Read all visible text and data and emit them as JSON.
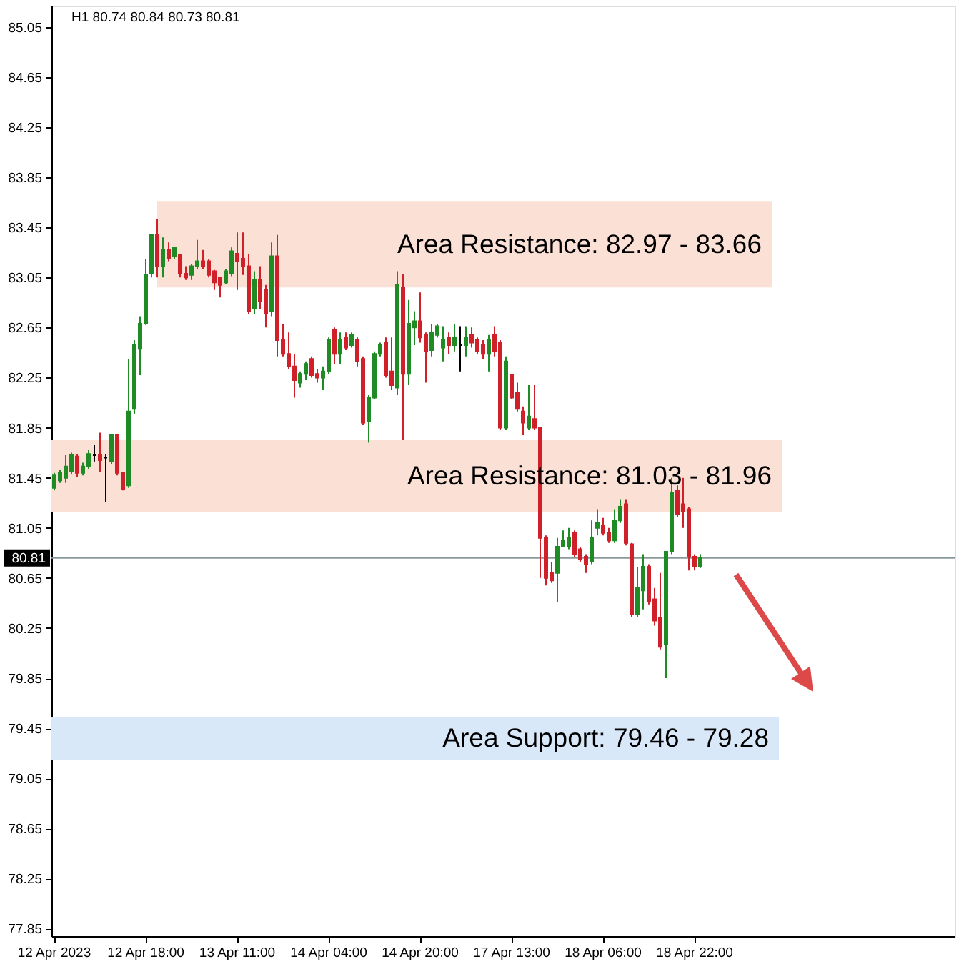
{
  "chart_data": {
    "type": "candlestick",
    "title": "H1 80.74 80.84 80.73 80.81",
    "categories": [
      "12 Apr 2023",
      null,
      null,
      null,
      null,
      null,
      null,
      null,
      null,
      null,
      null,
      null,
      null,
      null,
      null,
      null,
      "12 Apr 18:00",
      null,
      null,
      null,
      null,
      null,
      null,
      null,
      null,
      null,
      null,
      null,
      null,
      null,
      null,
      null,
      "13 Apr 11:00",
      null,
      null,
      null,
      null,
      null,
      null,
      null,
      null,
      null,
      null,
      null,
      null,
      null,
      null,
      null,
      "14 Apr 04:00",
      null,
      null,
      null,
      null,
      null,
      null,
      null,
      null,
      null,
      null,
      null,
      null,
      null,
      null,
      null,
      "14 Apr 20:00",
      null,
      null,
      null,
      null,
      null,
      null,
      null,
      null,
      null,
      null,
      null,
      null,
      null,
      null,
      null,
      "17 Apr 13:00",
      null,
      null,
      null,
      null,
      null,
      null,
      null,
      null,
      null,
      null,
      null,
      null,
      null,
      null,
      null,
      "18 Apr 06:00",
      null,
      null,
      null,
      null,
      null,
      null,
      null,
      null,
      null,
      null,
      null,
      null,
      null,
      null,
      null,
      "18 Apr 22:00",
      null,
      null,
      null,
      null,
      null,
      null,
      null,
      null,
      null,
      null,
      null,
      null,
      null,
      null,
      null,
      null,
      null,
      null,
      null,
      null,
      null,
      null,
      null,
      null,
      null,
      null,
      null,
      null,
      null,
      null,
      null,
      null,
      null,
      null,
      null,
      null,
      null,
      null,
      null,
      null,
      null,
      null,
      null,
      null,
      null
    ],
    "ohlc": [
      [
        81.37,
        81.49,
        81.35,
        81.47
      ],
      [
        81.43,
        81.51,
        81.41,
        81.49
      ],
      [
        81.45,
        81.63,
        81.41,
        81.54
      ],
      [
        81.5,
        81.65,
        81.48,
        81.63
      ],
      [
        81.62,
        81.64,
        81.46,
        81.49
      ],
      [
        81.49,
        81.57,
        81.47,
        81.54
      ],
      [
        81.54,
        81.67,
        81.52,
        81.64
      ],
      [
        81.63,
        81.71,
        81.58,
        81.63
      ],
      [
        81.63,
        81.81,
        81.5,
        81.59
      ],
      [
        81.61,
        81.64,
        81.26,
        81.61
      ],
      [
        81.58,
        81.79,
        81.56,
        81.79
      ],
      [
        81.79,
        81.79,
        81.47,
        81.49
      ],
      [
        81.49,
        81.49,
        81.35,
        81.36
      ],
      [
        81.39,
        82.4,
        81.37,
        81.98
      ],
      [
        82.0,
        82.55,
        81.96,
        82.51
      ],
      [
        82.48,
        82.74,
        82.27,
        82.68
      ],
      [
        82.68,
        83.2,
        82.67,
        83.07
      ],
      [
        83.08,
        83.39,
        83.05,
        83.39
      ],
      [
        83.39,
        83.52,
        83.05,
        83.14
      ],
      [
        83.14,
        83.37,
        83.05,
        83.27
      ],
      [
        83.27,
        83.33,
        83.18,
        83.2
      ],
      [
        83.22,
        83.29,
        83.2,
        83.29
      ],
      [
        83.23,
        83.24,
        83.05,
        83.08
      ],
      [
        83.08,
        83.14,
        83.03,
        83.05
      ],
      [
        83.07,
        83.16,
        83.03,
        83.14
      ],
      [
        83.14,
        83.35,
        83.12,
        83.18
      ],
      [
        83.18,
        83.27,
        83.12,
        83.14
      ],
      [
        83.18,
        83.2,
        83.05,
        83.07
      ],
      [
        83.1,
        83.11,
        82.95,
        83.01
      ],
      [
        83.05,
        83.05,
        82.89,
        82.99
      ],
      [
        83.01,
        83.12,
        83.0,
        83.1
      ],
      [
        83.08,
        83.29,
        83.06,
        83.26
      ],
      [
        83.24,
        83.41,
        82.95,
        83.18
      ],
      [
        83.2,
        83.41,
        83.07,
        83.14
      ],
      [
        83.14,
        83.24,
        82.76,
        82.78
      ],
      [
        82.8,
        83.1,
        82.76,
        83.03
      ],
      [
        83.03,
        83.14,
        82.8,
        82.86
      ],
      [
        82.95,
        82.99,
        82.65,
        82.76
      ],
      [
        82.78,
        83.33,
        82.74,
        83.22
      ],
      [
        83.22,
        83.39,
        82.42,
        82.55
      ],
      [
        82.55,
        82.68,
        82.42,
        82.44
      ],
      [
        82.44,
        82.61,
        82.32,
        82.34
      ],
      [
        82.34,
        82.44,
        82.09,
        82.23
      ],
      [
        82.21,
        82.3,
        82.17,
        82.28
      ],
      [
        82.28,
        82.38,
        82.23,
        82.36
      ],
      [
        82.4,
        82.42,
        82.25,
        82.27
      ],
      [
        82.28,
        82.32,
        82.21,
        82.25
      ],
      [
        82.25,
        82.34,
        82.15,
        82.3
      ],
      [
        82.3,
        82.57,
        82.28,
        82.55
      ],
      [
        82.63,
        82.65,
        82.36,
        82.44
      ],
      [
        82.44,
        82.61,
        82.36,
        82.55
      ],
      [
        82.57,
        82.61,
        82.47,
        82.49
      ],
      [
        82.51,
        82.61,
        82.49,
        82.59
      ],
      [
        82.55,
        82.57,
        82.34,
        82.38
      ],
      [
        82.4,
        82.42,
        81.87,
        81.89
      ],
      [
        81.9,
        82.11,
        81.73,
        82.09
      ],
      [
        82.09,
        82.46,
        82.08,
        82.44
      ],
      [
        82.44,
        82.53,
        82.42,
        82.51
      ],
      [
        82.53,
        82.57,
        82.25,
        82.27
      ],
      [
        82.3,
        82.57,
        82.15,
        82.19
      ],
      [
        82.17,
        83.1,
        82.11,
        82.99
      ],
      [
        82.97,
        83.08,
        81.75,
        82.28
      ],
      [
        82.28,
        82.87,
        82.19,
        82.68
      ],
      [
        82.65,
        82.78,
        82.51,
        82.7
      ],
      [
        82.7,
        82.93,
        82.53,
        82.57
      ],
      [
        82.59,
        82.61,
        82.21,
        82.46
      ],
      [
        82.47,
        82.68,
        82.42,
        82.61
      ],
      [
        82.59,
        82.68,
        82.57,
        82.66
      ],
      [
        82.49,
        82.66,
        82.38,
        82.55
      ],
      [
        82.57,
        82.61,
        82.44,
        82.51
      ],
      [
        82.51,
        82.68,
        82.46,
        82.57
      ],
      [
        82.51,
        82.66,
        82.3,
        82.51
      ],
      [
        82.51,
        82.66,
        82.42,
        82.57
      ],
      [
        82.59,
        82.65,
        82.49,
        82.53
      ],
      [
        82.55,
        82.57,
        82.44,
        82.46
      ],
      [
        82.51,
        82.55,
        82.4,
        82.44
      ],
      [
        82.44,
        82.59,
        82.3,
        82.55
      ],
      [
        82.59,
        82.66,
        82.42,
        82.46
      ],
      [
        82.53,
        82.55,
        81.83,
        81.85
      ],
      [
        81.85,
        82.42,
        81.83,
        82.38
      ],
      [
        82.27,
        82.28,
        82.08,
        82.09
      ],
      [
        82.13,
        82.21,
        81.98,
        82.0
      ],
      [
        81.98,
        82.02,
        81.79,
        81.89
      ],
      [
        81.85,
        82.19,
        81.83,
        81.94
      ],
      [
        81.92,
        82.19,
        81.83,
        81.85
      ],
      [
        81.85,
        81.85,
        80.65,
        80.97
      ],
      [
        80.97,
        80.99,
        80.59,
        80.65
      ],
      [
        80.69,
        80.78,
        80.61,
        80.63
      ],
      [
        80.69,
        80.97,
        80.46,
        80.9
      ],
      [
        80.9,
        81.03,
        80.9,
        80.95
      ],
      [
        80.9,
        81.05,
        80.88,
        80.97
      ],
      [
        81.01,
        81.03,
        80.82,
        80.84
      ],
      [
        80.88,
        80.9,
        80.78,
        80.8
      ],
      [
        80.82,
        80.84,
        80.69,
        80.76
      ],
      [
        80.78,
        81.11,
        80.76,
        80.97
      ],
      [
        81.05,
        81.2,
        80.99,
        81.09
      ],
      [
        81.07,
        81.13,
        80.99,
        81.01
      ],
      [
        81.01,
        81.05,
        80.93,
        80.95
      ],
      [
        80.95,
        81.2,
        80.93,
        81.11
      ],
      [
        81.11,
        81.28,
        81.09,
        81.22
      ],
      [
        81.24,
        81.28,
        80.91,
        80.93
      ],
      [
        80.92,
        80.93,
        80.34,
        80.36
      ],
      [
        80.36,
        80.74,
        80.34,
        80.57
      ],
      [
        80.55,
        80.84,
        80.4,
        80.74
      ],
      [
        80.74,
        80.76,
        80.44,
        80.46
      ],
      [
        80.48,
        80.57,
        80.27,
        80.31
      ],
      [
        80.33,
        80.69,
        80.08,
        80.1
      ],
      [
        80.12,
        80.86,
        79.85,
        80.86
      ],
      [
        80.86,
        81.45,
        80.84,
        81.33
      ],
      [
        81.35,
        81.39,
        81.14,
        81.16
      ],
      [
        81.24,
        81.45,
        81.05,
        81.18
      ],
      [
        81.2,
        81.22,
        80.71,
        80.82
      ],
      [
        80.82,
        80.84,
        80.71,
        80.74
      ],
      [
        80.74,
        80.84,
        80.73,
        80.81
      ],
      null,
      null,
      null,
      null,
      null,
      null,
      null,
      null,
      null,
      null,
      null,
      null,
      null,
      null,
      null,
      null,
      null,
      null,
      null,
      null,
      null,
      null,
      null,
      null,
      null,
      null,
      null,
      null,
      null,
      null,
      null,
      null,
      null,
      null,
      null,
      null,
      null,
      null,
      null,
      null,
      null,
      null,
      null,
      null
    ],
    "colors": [
      "#1f8b24",
      "#1f8b24",
      "#1f8b24",
      "#1f8b24",
      "#d0202a",
      "#1f8b24",
      "#1f8b24",
      "#000000",
      "#d0202a",
      "#000000",
      "#1f8b24",
      "#d0202a",
      "#d0202a",
      "#1f8b24",
      "#1f8b24",
      "#1f8b24",
      "#1f8b24",
      "#1f8b24",
      "#d0202a",
      "#1f8b24",
      "#d0202a",
      "#1f8b24",
      "#d0202a",
      "#d0202a",
      "#1f8b24",
      "#1f8b24",
      "#d0202a",
      "#d0202a",
      "#d0202a",
      "#d0202a",
      "#1f8b24",
      "#1f8b24",
      "#d0202a",
      "#d0202a",
      "#d0202a",
      "#1f8b24",
      "#d0202a",
      "#d0202a",
      "#1f8b24",
      "#d0202a",
      "#d0202a",
      "#d0202a",
      "#d0202a",
      "#1f8b24",
      "#1f8b24",
      "#d0202a",
      "#d0202a",
      "#1f8b24",
      "#1f8b24",
      "#d0202a",
      "#1f8b24",
      "#d0202a",
      "#1f8b24",
      "#d0202a",
      "#d0202a",
      "#1f8b24",
      "#1f8b24",
      "#1f8b24",
      "#d0202a",
      "#d0202a",
      "#1f8b24",
      "#d0202a",
      "#1f8b24",
      "#1f8b24",
      "#d0202a",
      "#d0202a",
      "#1f8b24",
      "#1f8b24",
      "#1f8b24",
      "#d0202a",
      "#1f8b24",
      "#000000",
      "#1f8b24",
      "#d0202a",
      "#d0202a",
      "#d0202a",
      "#1f8b24",
      "#d0202a",
      "#d0202a",
      "#1f8b24",
      "#d0202a",
      "#d0202a",
      "#d0202a",
      "#1f8b24",
      "#d0202a",
      "#d0202a",
      "#d0202a",
      "#d0202a",
      "#1f8b24",
      "#1f8b24",
      "#1f8b24",
      "#d0202a",
      "#d0202a",
      "#d0202a",
      "#1f8b24",
      "#1f8b24",
      "#d0202a",
      "#d0202a",
      "#1f8b24",
      "#1f8b24",
      "#d0202a",
      "#d0202a",
      "#1f8b24",
      "#1f8b24",
      "#d0202a",
      "#d0202a",
      "#d0202a",
      "#1f8b24",
      "#1f8b24",
      "#d0202a",
      "#d0202a",
      "#d0202a",
      "#d0202a",
      "#1f8b24",
      null,
      null,
      null,
      null,
      null,
      null,
      null,
      null,
      null,
      null,
      null,
      null,
      null,
      null,
      null,
      null,
      null,
      null,
      null,
      null,
      null,
      null,
      null,
      null,
      null,
      null,
      null,
      null,
      null,
      null,
      null,
      null,
      null,
      null,
      null,
      null,
      null,
      null,
      null,
      null,
      null,
      null,
      null,
      null
    ],
    "ylim": [
      77.79,
      85.22
    ],
    "yticks": [
      77.85,
      78.25,
      78.65,
      79.05,
      79.45,
      79.85,
      80.25,
      80.65,
      81.05,
      81.45,
      81.85,
      82.25,
      82.65,
      83.05,
      83.45,
      83.85,
      84.25,
      84.65,
      85.05
    ],
    "ref_lines": [
      {
        "axis": "y",
        "value": 80.81,
        "label": "80.81",
        "color": "#8a9a9a"
      }
    ],
    "bands": [
      {
        "axis": "y",
        "from": 82.97,
        "to": 83.66,
        "label": "Area Resistance: 82.97 - 83.66",
        "color": "#fbe0d5"
      },
      {
        "axis": "y",
        "from": 81.18,
        "to": 81.75,
        "label": "Area Resistance: 81.03 - 81.96",
        "color": "#fbe0d5"
      },
      {
        "axis": "y",
        "from": 79.2,
        "to": 79.54,
        "label": "Area Support: 79.46 - 79.28",
        "color": "#d9e8f8"
      }
    ]
  }
}
